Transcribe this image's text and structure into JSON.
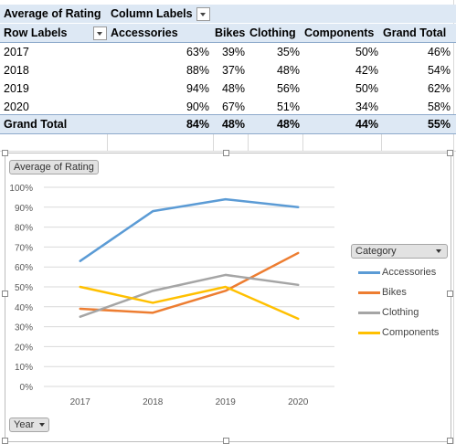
{
  "pivot": {
    "value_field": "Average of Rating",
    "column_labels": "Column Labels",
    "row_labels": "Row Labels",
    "columns": [
      "Accessories",
      "Bikes",
      "Clothing",
      "Components",
      "Grand Total"
    ],
    "rows": [
      {
        "label": "2017",
        "values": [
          "63%",
          "39%",
          "35%",
          "50%",
          "46%"
        ]
      },
      {
        "label": "2018",
        "values": [
          "88%",
          "37%",
          "48%",
          "42%",
          "54%"
        ]
      },
      {
        "label": "2019",
        "values": [
          "94%",
          "48%",
          "56%",
          "50%",
          "62%"
        ]
      },
      {
        "label": "2020",
        "values": [
          "90%",
          "67%",
          "51%",
          "34%",
          "58%"
        ]
      }
    ],
    "grand_total": {
      "label": "Grand Total",
      "values": [
        "84%",
        "48%",
        "48%",
        "44%",
        "55%"
      ]
    }
  },
  "chart_field_buttons": {
    "value": "Average of Rating",
    "legend": "Category",
    "axis": "Year"
  },
  "chart_data": {
    "type": "line",
    "categories": [
      "2017",
      "2018",
      "2019",
      "2020"
    ],
    "series": [
      {
        "name": "Accessories",
        "color": "#5b9bd5",
        "values": [
          63,
          88,
          94,
          90
        ]
      },
      {
        "name": "Bikes",
        "color": "#ed7d31",
        "values": [
          39,
          37,
          48,
          67
        ]
      },
      {
        "name": "Clothing",
        "color": "#a5a5a5",
        "values": [
          35,
          48,
          56,
          51
        ]
      },
      {
        "name": "Components",
        "color": "#ffc000",
        "values": [
          50,
          42,
          50,
          34
        ]
      }
    ],
    "ylim": [
      0,
      100
    ],
    "ytick_labels": [
      "0%",
      "10%",
      "20%",
      "30%",
      "40%",
      "50%",
      "60%",
      "70%",
      "80%",
      "90%",
      "100%"
    ],
    "grid": true,
    "legend_position": "right"
  }
}
